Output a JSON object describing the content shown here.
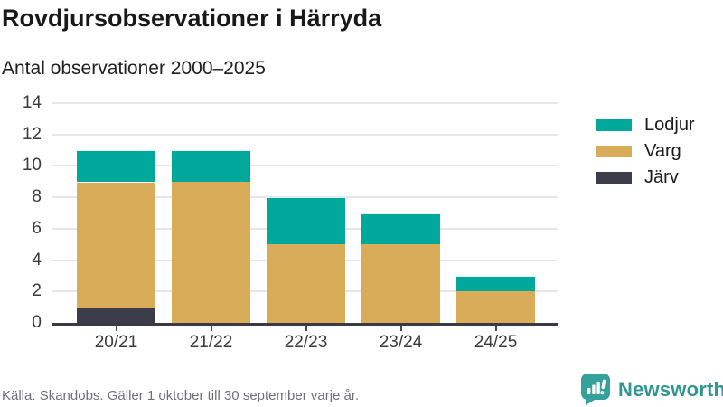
{
  "header": {
    "title": "Rovdjursobservationer i Härryda",
    "subtitle": "Antal observationer 2000–2025"
  },
  "chart_data": {
    "type": "bar",
    "stacked": true,
    "title": "Rovdjursobservationer i Härryda",
    "subtitle": "Antal observationer 2000–2025",
    "categories": [
      "20/21",
      "21/22",
      "22/23",
      "23/24",
      "24/25"
    ],
    "series": [
      {
        "name": "Lodjur",
        "color": "#00a79b",
        "values": [
          2,
          2,
          3,
          2,
          1
        ]
      },
      {
        "name": "Varg",
        "color": "#d9ac59",
        "values": [
          8,
          9,
          5,
          5,
          2
        ]
      },
      {
        "name": "Järv",
        "color": "#3c3c4b",
        "values": [
          1,
          0,
          0,
          0,
          0
        ]
      }
    ],
    "stack_order_bottom_to_top": [
      "Järv",
      "Varg",
      "Lodjur"
    ],
    "totals": [
      11,
      11,
      8,
      7,
      3
    ],
    "xlabel": "",
    "ylabel": "",
    "ylim": [
      0,
      14
    ],
    "yticks": [
      0,
      2,
      4,
      6,
      8,
      10,
      12,
      14
    ],
    "grid": true,
    "legend_position": "right"
  },
  "footer": {
    "source": "Källa: Skandobs. Gäller 1 oktober till 30 september varje år.",
    "brand": "Newsworthy"
  },
  "colors": {
    "lodjur": "#00a79b",
    "varg": "#d9ac59",
    "jarv": "#3c3c4b",
    "brand_teal": "#2f9692",
    "axis_text": "#3a3a3a",
    "grid_line": "#e6e6e6",
    "axis_line": "#3a3a43",
    "source_text": "#6f6f7a"
  }
}
